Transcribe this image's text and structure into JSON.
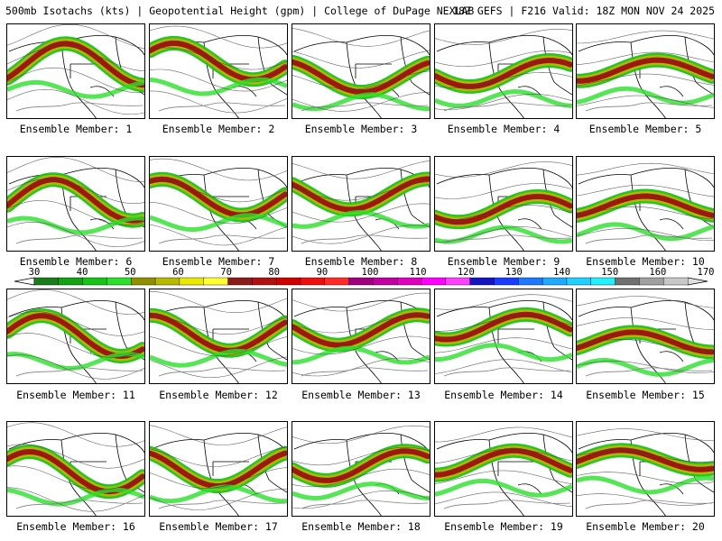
{
  "header": {
    "left": "500mb Isotachs (kts) | Geopotential Height (gpm) | College of DuPage NEXLAB",
    "right": "18Z GEFS | F216 Valid: 18Z MON NOV 24 2025"
  },
  "members": [
    {
      "label": "Ensemble Member: 1"
    },
    {
      "label": "Ensemble Member: 2"
    },
    {
      "label": "Ensemble Member: 3"
    },
    {
      "label": "Ensemble Member: 4"
    },
    {
      "label": "Ensemble Member: 5"
    },
    {
      "label": "Ensemble Member: 6"
    },
    {
      "label": "Ensemble Member: 7"
    },
    {
      "label": "Ensemble Member: 8"
    },
    {
      "label": "Ensemble Member: 9"
    },
    {
      "label": "Ensemble Member: 10"
    },
    {
      "label": "Ensemble Member: 11"
    },
    {
      "label": "Ensemble Member: 12"
    },
    {
      "label": "Ensemble Member: 13"
    },
    {
      "label": "Ensemble Member: 14"
    },
    {
      "label": "Ensemble Member: 15"
    },
    {
      "label": "Ensemble Member: 16"
    },
    {
      "label": "Ensemble Member: 17"
    },
    {
      "label": "Ensemble Member: 18"
    },
    {
      "label": "Ensemble Member: 19"
    },
    {
      "label": "Ensemble Member: 20"
    }
  ],
  "colorbar": {
    "top_labels": [
      "30",
      "40",
      "50",
      "60",
      "70",
      "80",
      "90",
      "100",
      "110",
      "120",
      "130",
      "140",
      "150",
      "160",
      "170"
    ],
    "bin_colors": [
      "#1a7d1a",
      "#12a312",
      "#16c416",
      "#2ae02a",
      "#8f8f00",
      "#b8b800",
      "#e8e800",
      "#ffff33",
      "#8b1a1a",
      "#b01010",
      "#d00000",
      "#ee1010",
      "#ff2a2a",
      "#a00080",
      "#c000a0",
      "#e000c0",
      "#ff00ff",
      "#ff40ff",
      "#1414c0",
      "#1a3cff",
      "#1e78ff",
      "#1eaaff",
      "#20d0ff",
      "#22f0ff",
      "#707070",
      "#a0a0a0",
      "#c8c8c8"
    ]
  }
}
